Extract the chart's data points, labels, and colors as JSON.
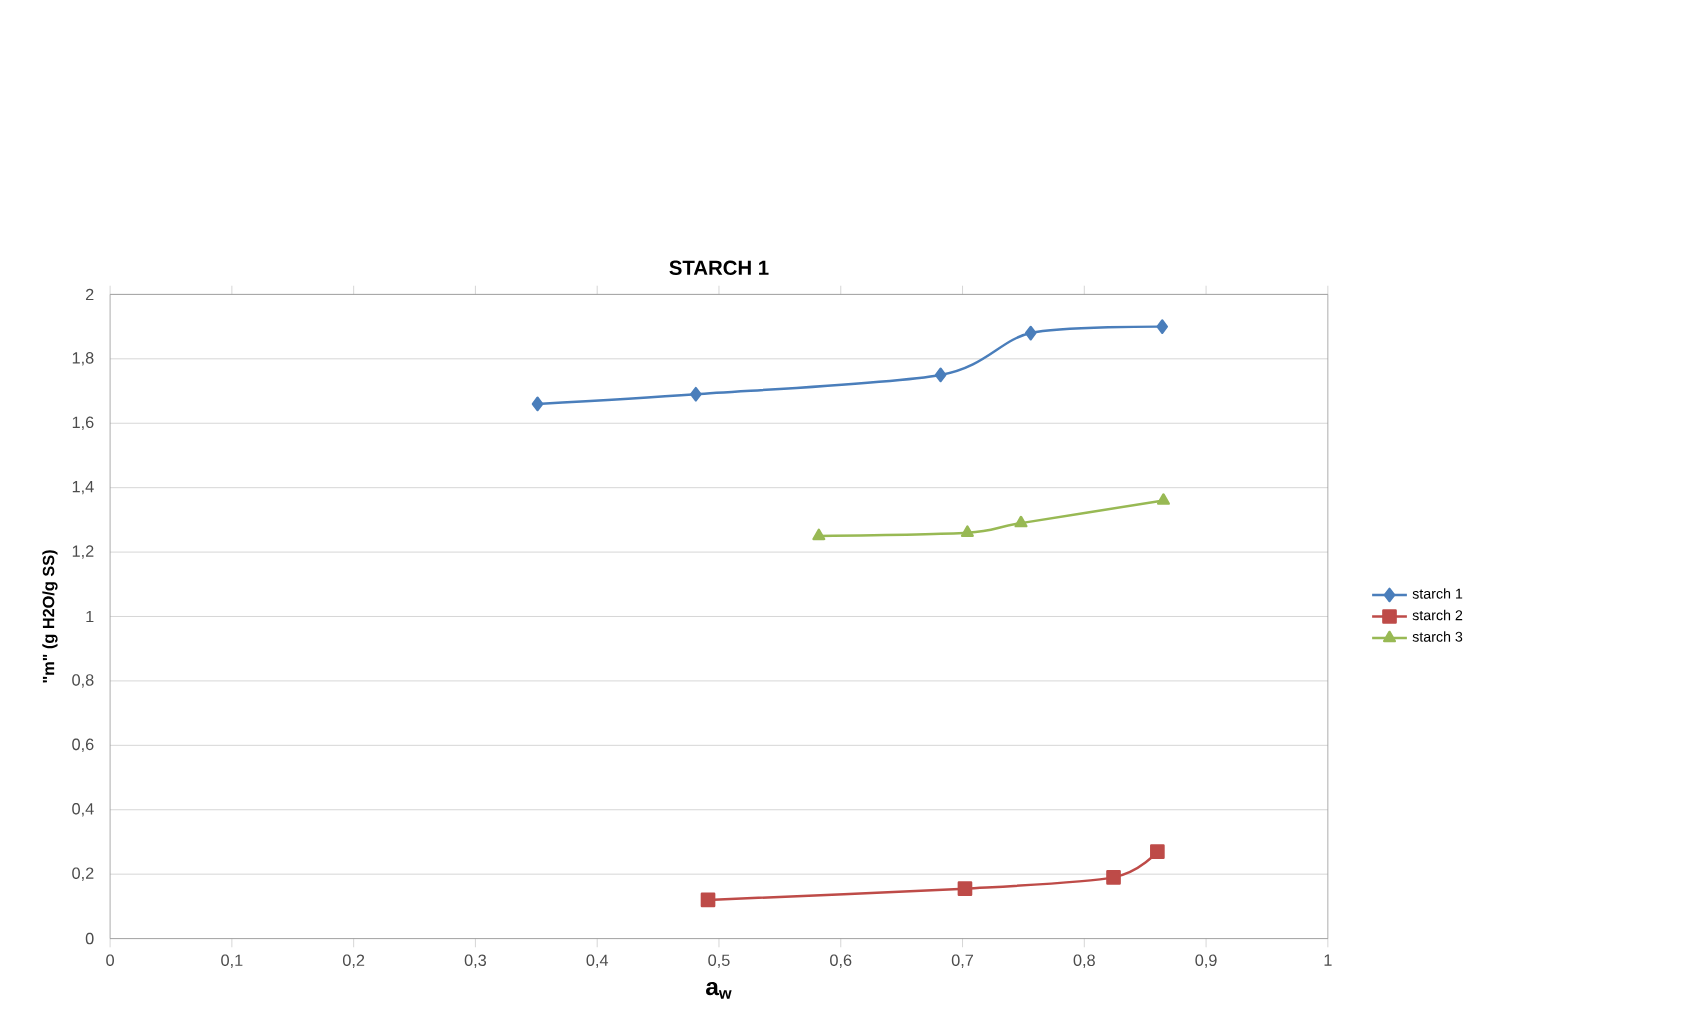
{
  "chart_data": {
    "type": "line",
    "title": "STARCH 1",
    "xlabel": "a$_{w}$",
    "ylabel": "\"m\" (g H2O/g SS)",
    "xlim": [
      0,
      1
    ],
    "ylim": [
      0,
      2
    ],
    "xticks": [
      0,
      {
        "value": 0.1,
        "label": "0,1"
      },
      {
        "value": 0.2,
        "label": "0,2"
      },
      {
        "value": 0.3,
        "label": "0,3"
      },
      {
        "value": 0.4,
        "label": "0,4"
      },
      {
        "value": 0.5,
        "label": "0,5"
      },
      {
        "value": 0.6,
        "label": "0,6"
      },
      {
        "value": 0.7,
        "label": "0,7"
      },
      {
        "value": 0.8,
        "label": "0,8"
      },
      {
        "value": 0.9,
        "label": "0,9"
      },
      1
    ],
    "yticks": [
      0,
      {
        "value": 0.2,
        "label": "0,2"
      },
      {
        "value": 0.4,
        "label": "0,4"
      },
      {
        "value": 0.6,
        "label": "0,6"
      },
      {
        "value": 0.8,
        "label": "0,8"
      },
      1,
      {
        "value": 1.2,
        "label": "1,2"
      },
      {
        "value": 1.4,
        "label": "1,4"
      },
      {
        "value": 1.6,
        "label": "1,6"
      },
      {
        "value": 1.8,
        "label": "1,8"
      },
      2
    ],
    "grid": "y",
    "legend": "right",
    "series": [
      {
        "name": "starch 1",
        "color": "#4a7ebb",
        "marker": "diamond",
        "x": [
          0.351,
          0.481,
          0.682,
          0.756,
          0.864
        ],
        "values": [
          1.66,
          1.69,
          1.75,
          1.88,
          1.9
        ]
      },
      {
        "name": "starch 2",
        "color": "#be4b48",
        "marker": "square",
        "x": [
          0.491,
          0.702,
          0.824,
          0.86
        ],
        "values": [
          0.12,
          0.155,
          0.19,
          0.27
        ]
      },
      {
        "name": "starch 3",
        "color": "#98b954",
        "marker": "triangle",
        "x": [
          0.582,
          0.704,
          0.748,
          0.865
        ],
        "values": [
          1.25,
          1.26,
          1.29,
          1.36
        ]
      }
    ]
  }
}
